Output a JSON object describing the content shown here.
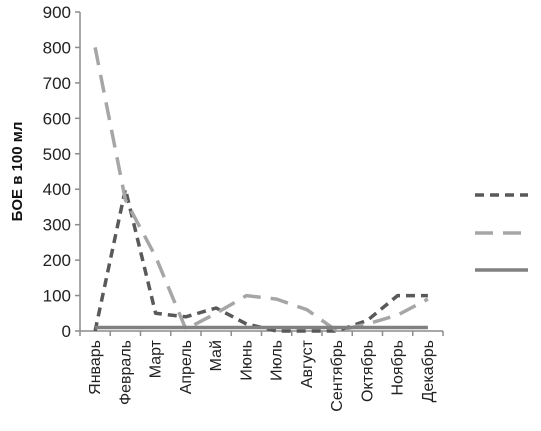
{
  "chart_data": {
    "type": "line",
    "title": "",
    "xlabel": "",
    "ylabel": "БОЕ в 100 мл",
    "ylim": [
      0,
      900
    ],
    "yticks": [
      "0",
      "100",
      "200",
      "300",
      "400",
      "500",
      "600",
      "700",
      "800",
      "900"
    ],
    "grid": false,
    "legend_position": "right",
    "categories": [
      "Январь",
      "Февраль",
      "Март",
      "Апрель",
      "Май",
      "Июнь",
      "Июль",
      "Август",
      "Сентябрь",
      "Октябрь",
      "Ноябрь",
      "Декабрь"
    ],
    "series": [
      {
        "values": [
          0,
          400,
          50,
          40,
          65,
          20,
          0,
          0,
          0,
          30,
          100,
          100
        ],
        "color": "#595959",
        "style": "dashed"
      },
      {
        "values": [
          800,
          370,
          210,
          5,
          50,
          100,
          90,
          60,
          0,
          20,
          45,
          90
        ],
        "color": "#a6a6a6",
        "style": "long-dashed"
      },
      {
        "values": [
          10,
          10,
          10,
          10,
          10,
          10,
          10,
          10,
          10,
          10,
          10,
          10
        ],
        "color": "#808080",
        "style": "solid"
      }
    ]
  }
}
